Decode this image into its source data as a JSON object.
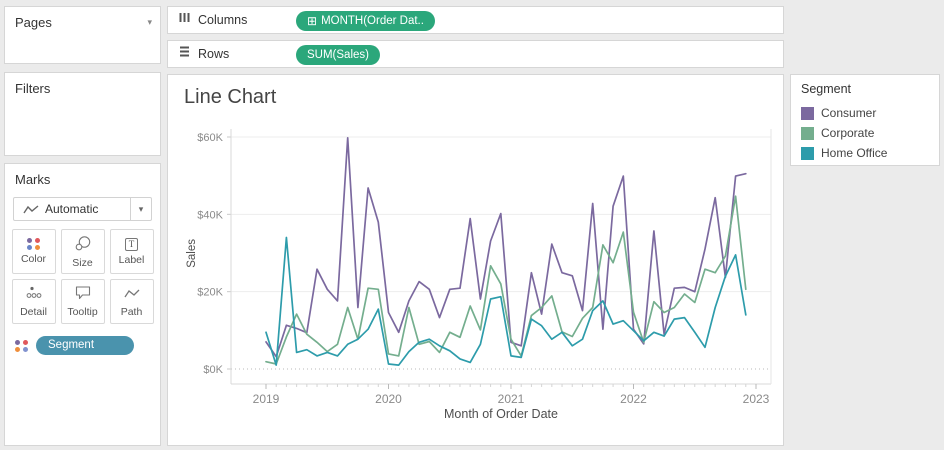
{
  "pages_panel": {
    "title": "Pages"
  },
  "filters_panel": {
    "title": "Filters"
  },
  "marks_panel": {
    "title": "Marks",
    "mark_type": "Automatic",
    "buttons": [
      {
        "label": "Color"
      },
      {
        "label": "Size"
      },
      {
        "label": "Label"
      },
      {
        "label": "Detail"
      },
      {
        "label": "Tooltip"
      },
      {
        "label": "Path"
      }
    ],
    "encoding_field": "Segment",
    "encoding_pill_color": "#4a93ad",
    "color_icon_dots": [
      "#7b699f",
      "#e0585c",
      "#6a85c7",
      "#ef8e3b"
    ],
    "segment_icon_dots": [
      "#7b699f",
      "#e0585c",
      "#ef8e3b",
      "#8192cf"
    ]
  },
  "shelves": {
    "columns": {
      "label": "Columns",
      "pill": "MONTH(Order Dat..",
      "pill_icon": "⊞"
    },
    "rows": {
      "label": "Rows",
      "pill": "SUM(Sales)"
    },
    "pill_color": "#2ba77b"
  },
  "icons": {
    "caret_down": "▾",
    "plus_box": "⊞",
    "label_glyph": "T"
  },
  "legend": {
    "title": "Segment"
  },
  "chart_data": {
    "type": "line",
    "title": "Line Chart",
    "xlabel": "Month of Order Date",
    "ylabel": "Sales",
    "x_unit": "month",
    "x_range": [
      "2019-01",
      "2022-12"
    ],
    "x_ticks": [
      "2019",
      "2020",
      "2021",
      "2022",
      "2023"
    ],
    "y_ticks": [
      {
        "label": "$0K",
        "value": 0
      },
      {
        "label": "$20K",
        "value": 20
      },
      {
        "label": "$40K",
        "value": 40
      },
      {
        "label": "$60K",
        "value": 60
      }
    ],
    "ylim": [
      0,
      62
    ],
    "values_unit": "USD thousands",
    "grid": true,
    "legend_position": "right",
    "series": [
      {
        "name": "Consumer",
        "color": "#7b699f",
        "values": [
          7.0,
          3.2,
          11.3,
          10.5,
          9.4,
          25.8,
          20.6,
          17.6,
          59.8,
          15.9,
          46.8,
          38.0,
          14.6,
          9.5,
          17.6,
          22.6,
          20.6,
          13.3,
          20.6,
          20.9,
          38.9,
          18.1,
          33.1,
          40.2,
          6.9,
          6.0,
          24.9,
          14.2,
          32.3,
          24.9,
          24.1,
          15.1,
          42.8,
          10.3,
          42.1,
          49.9,
          10.3,
          6.5,
          35.7,
          9.0,
          20.9,
          21.1,
          20.0,
          31.0,
          44.3,
          23.7,
          49.9,
          50.5
        ]
      },
      {
        "name": "Corporate",
        "color": "#74ae8e",
        "values": [
          1.9,
          1.3,
          8.3,
          14.2,
          9.0,
          6.9,
          4.5,
          6.4,
          15.9,
          7.7,
          20.9,
          20.6,
          3.9,
          3.4,
          15.9,
          6.4,
          7.1,
          4.3,
          9.5,
          8.2,
          16.3,
          10.1,
          26.7,
          22.0,
          7.7,
          3.4,
          13.8,
          15.9,
          18.9,
          9.6,
          8.4,
          13.1,
          15.9,
          32.1,
          27.5,
          35.4,
          14.7,
          6.9,
          17.4,
          14.6,
          15.9,
          19.4,
          17.2,
          25.8,
          24.9,
          29.2,
          44.7,
          20.6
        ]
      },
      {
        "name": "Home Office",
        "color": "#2d9cab",
        "values": [
          9.5,
          1.0,
          34.0,
          4.3,
          5.0,
          3.4,
          4.3,
          3.4,
          6.4,
          7.7,
          10.3,
          15.5,
          1.3,
          1.0,
          4.5,
          6.9,
          7.7,
          6.0,
          4.7,
          2.6,
          1.7,
          6.4,
          18.1,
          18.7,
          3.4,
          3.0,
          12.9,
          11.2,
          7.7,
          9.5,
          6.0,
          7.7,
          15.1,
          17.6,
          11.6,
          12.5,
          9.9,
          7.3,
          9.5,
          8.5,
          12.9,
          13.3,
          9.5,
          5.6,
          15.9,
          24.0,
          29.5,
          14.0
        ]
      }
    ]
  }
}
